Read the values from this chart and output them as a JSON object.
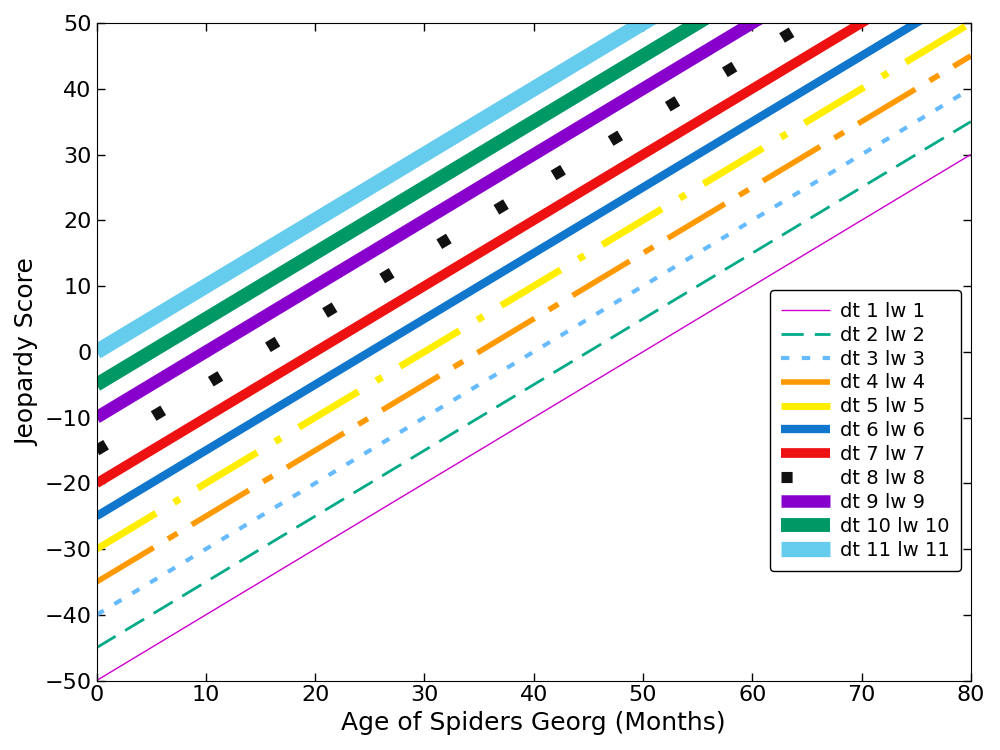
{
  "title": "",
  "xlabel": "Age of Spiders Georg (Months)",
  "ylabel": "Jeopardy Score",
  "xlim": [
    0,
    80
  ],
  "ylim": [
    -50,
    50
  ],
  "xticks": [
    0,
    10,
    20,
    30,
    40,
    50,
    60,
    70,
    80
  ],
  "yticks": [
    -50,
    -40,
    -30,
    -20,
    -10,
    0,
    10,
    20,
    30,
    40,
    50
  ],
  "slope": 1.0,
  "lines": [
    {
      "label": "dt 1 lw 1",
      "color": "#CC00CC",
      "lw": 1,
      "dashes": [],
      "intercept": -50
    },
    {
      "label": "dt 2 lw 2",
      "color": "#00AA88",
      "lw": 2,
      "dashes": [
        8,
        4
      ],
      "intercept": -45
    },
    {
      "label": "dt 3 lw 3",
      "color": "#66BBFF",
      "lw": 3,
      "dashes": [
        2,
        3
      ],
      "intercept": -40
    },
    {
      "label": "dt 4 lw 4",
      "color": "#FF9900",
      "lw": 4,
      "dashes": [
        12,
        3,
        2,
        3
      ],
      "intercept": -35
    },
    {
      "label": "dt 5 lw 5",
      "color": "#FFEE00",
      "lw": 5,
      "dashes": [
        10,
        3,
        1,
        3
      ],
      "intercept": -30
    },
    {
      "label": "dt 6 lw 6",
      "color": "#1177CC",
      "lw": 6,
      "dashes": [],
      "intercept": -25
    },
    {
      "label": "dt 7 lw 7",
      "color": "#EE1111",
      "lw": 7,
      "dashes": [],
      "intercept": -20
    },
    {
      "label": "dt 8 lw 8",
      "color": "#111111",
      "lw": 8,
      "dashes": [
        1,
        5
      ],
      "intercept": -15
    },
    {
      "label": "dt 9 lw 9",
      "color": "#8800CC",
      "lw": 9,
      "dashes": [],
      "intercept": -10
    },
    {
      "label": "dt 10 lw 10",
      "color": "#009966",
      "lw": 10,
      "dashes": [],
      "intercept": -5
    },
    {
      "label": "dt 11 lw 11",
      "color": "#66CCEE",
      "lw": 11,
      "dashes": [],
      "intercept": 0
    }
  ],
  "legend_fontsize": 14,
  "axis_fontsize": 18,
  "tick_fontsize": 16
}
